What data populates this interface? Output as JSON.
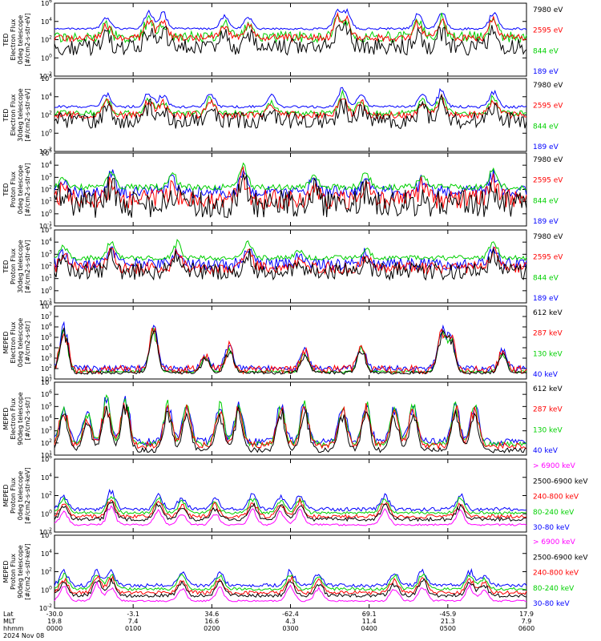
{
  "colors": {
    "black": "#000000",
    "red": "#ff0000",
    "green": "#00d000",
    "blue": "#0000ff",
    "magenta": "#ff00ff"
  },
  "chart_data": [
    {
      "type": "line",
      "ylabel": [
        "TED",
        "Electron Flux",
        "0deg telescope",
        "[#/cm2-s-str-eV]"
      ],
      "log": true,
      "ylim_exp": [
        -2,
        6
      ],
      "tick_labels": [
        "10^-2",
        "10^0",
        "10^2",
        "10^4",
        "10^6"
      ],
      "series": [
        {
          "name": "7980 eV",
          "color": "black"
        },
        {
          "name": "2595 eV",
          "color": "red"
        },
        {
          "name": "844 eV",
          "color": "green"
        },
        {
          "name": "189 eV",
          "color": "blue"
        }
      ],
      "base": {
        "black": 1.2,
        "red": 2.2,
        "green": 2.3,
        "blue": 3.2
      },
      "noise": {
        "black": 0.9,
        "red": 0.4,
        "green": 0.6,
        "blue": 0.12
      },
      "peaks": [
        {
          "x": 0.11,
          "h": 1.5
        },
        {
          "x": 0.2,
          "h": 2.2
        },
        {
          "x": 0.23,
          "h": 2.0
        },
        {
          "x": 0.36,
          "h": 1.7
        },
        {
          "x": 0.41,
          "h": 1.5
        },
        {
          "x": 0.6,
          "h": 2.4
        },
        {
          "x": 0.62,
          "h": 2.0
        },
        {
          "x": 0.77,
          "h": 1.8
        },
        {
          "x": 0.82,
          "h": 2.1
        },
        {
          "x": 0.93,
          "h": 2.2
        }
      ]
    },
    {
      "type": "line",
      "ylabel": [
        "TED",
        "Electron Flux",
        "30deg telescope",
        "[#/cm2-s-str-eV]"
      ],
      "log": true,
      "ylim_exp": [
        -2,
        6
      ],
      "tick_labels": [
        "10^-2",
        "10^0",
        "10^2",
        "10^4",
        "10^6"
      ],
      "series": [
        {
          "name": "7980 eV",
          "color": "black"
        },
        {
          "name": "2595 eV",
          "color": "red"
        },
        {
          "name": "844 eV",
          "color": "green"
        },
        {
          "name": "189 eV",
          "color": "blue"
        }
      ],
      "base": {
        "black": 1.4,
        "red": 2.0,
        "green": 2.2,
        "blue": 2.9
      },
      "noise": {
        "black": 0.9,
        "red": 0.4,
        "green": 0.3,
        "blue": 0.15
      },
      "peaks": [
        {
          "x": 0.11,
          "h": 1.6
        },
        {
          "x": 0.2,
          "h": 1.8
        },
        {
          "x": 0.23,
          "h": 1.5
        },
        {
          "x": 0.33,
          "h": 1.8
        },
        {
          "x": 0.46,
          "h": 1.4
        },
        {
          "x": 0.61,
          "h": 2.3
        },
        {
          "x": 0.65,
          "h": 1.6
        },
        {
          "x": 0.78,
          "h": 1.7
        },
        {
          "x": 0.82,
          "h": 2.0
        },
        {
          "x": 0.93,
          "h": 2.0
        }
      ]
    },
    {
      "type": "line",
      "ylabel": [
        "TED",
        "Proton Flux",
        "0deg telescope",
        "[#/cm2-s-str-eV]"
      ],
      "log": true,
      "ylim_exp": [
        -1,
        5
      ],
      "tick_labels": [
        "10^-1",
        "10^0",
        "10^1",
        "10^2",
        "10^3",
        "10^4",
        "10^5"
      ],
      "series": [
        {
          "name": "7980 eV",
          "color": "black"
        },
        {
          "name": "2595 eV",
          "color": "red"
        },
        {
          "name": "844 eV",
          "color": "green"
        },
        {
          "name": "189 eV",
          "color": "blue"
        }
      ],
      "base": {
        "black": 0.8,
        "red": 1.2,
        "green": 2.2,
        "blue": 1.8
      },
      "noise": {
        "black": 1.2,
        "red": 0.8,
        "green": 0.25,
        "blue": 0.5
      },
      "peaks": [
        {
          "x": 0.02,
          "h": 0.9
        },
        {
          "x": 0.12,
          "h": 1.6
        },
        {
          "x": 0.25,
          "h": 1.2
        },
        {
          "x": 0.4,
          "h": 2.0
        },
        {
          "x": 0.55,
          "h": 1.2
        },
        {
          "x": 0.66,
          "h": 1.4
        },
        {
          "x": 0.78,
          "h": 1.2
        },
        {
          "x": 0.93,
          "h": 1.6
        }
      ]
    },
    {
      "type": "line",
      "ylabel": [
        "TED",
        "Proton Flux",
        "30deg telescope",
        "[#/cm2-s-str-eV]"
      ],
      "log": true,
      "ylim_exp": [
        -1,
        5
      ],
      "tick_labels": [
        "10^-1",
        "10^0",
        "10^1",
        "10^2",
        "10^3",
        "10^4",
        "10^5"
      ],
      "series": [
        {
          "name": "7980 eV",
          "color": "black"
        },
        {
          "name": "2595 eV",
          "color": "red"
        },
        {
          "name": "844 eV",
          "color": "green"
        },
        {
          "name": "189 eV",
          "color": "blue"
        }
      ],
      "base": {
        "black": 1.6,
        "red": 1.9,
        "green": 2.7,
        "blue": 2.2
      },
      "noise": {
        "black": 0.7,
        "red": 0.5,
        "green": 0.2,
        "blue": 0.5
      },
      "peaks": [
        {
          "x": 0.02,
          "h": 1.0
        },
        {
          "x": 0.12,
          "h": 1.5
        },
        {
          "x": 0.26,
          "h": 1.4
        },
        {
          "x": 0.41,
          "h": 1.5
        },
        {
          "x": 0.52,
          "h": 0.8
        },
        {
          "x": 0.66,
          "h": 0.9
        },
        {
          "x": 0.93,
          "h": 1.6
        }
      ]
    },
    {
      "type": "line",
      "ylabel": [
        "MEPED",
        "Electron Flux",
        "0deg telescope",
        "[#/cm2-s-str]"
      ],
      "log": true,
      "ylim_exp": [
        1,
        8
      ],
      "tick_labels": [
        "10^1",
        "10^2",
        "10^3",
        "10^4",
        "10^5",
        "10^6",
        "10^7",
        "10^8"
      ],
      "series": [
        {
          "name": "612 keV",
          "color": "black"
        },
        {
          "name": "287 keV",
          "color": "red"
        },
        {
          "name": "130 keV",
          "color": "green"
        },
        {
          "name": "40 keV",
          "color": "blue"
        }
      ],
      "base": {
        "black": 1.6,
        "red": 1.9,
        "green": 1.7,
        "blue": 2.0
      },
      "noise": {
        "black": 0.15,
        "red": 0.4,
        "green": 0.1,
        "blue": 0.3
      },
      "peaks": [
        {
          "x": 0.02,
          "h": 4.5
        },
        {
          "x": 0.21,
          "h": 4.5
        },
        {
          "x": 0.32,
          "h": 1.6
        },
        {
          "x": 0.37,
          "h": 2.5
        },
        {
          "x": 0.53,
          "h": 2.0
        },
        {
          "x": 0.65,
          "h": 2.5
        },
        {
          "x": 0.82,
          "h": 4.0
        },
        {
          "x": 0.84,
          "h": 3.5
        },
        {
          "x": 0.95,
          "h": 2.0
        }
      ]
    },
    {
      "type": "line",
      "ylabel": [
        "MEPED",
        "Electron Flux",
        "90deg telescope",
        "[#/cm2-s-str]"
      ],
      "log": true,
      "ylim_exp": [
        1,
        7
      ],
      "tick_labels": [
        "10^1",
        "10^2",
        "10^3",
        "10^4",
        "10^5",
        "10^6",
        "10^7"
      ],
      "series": [
        {
          "name": "612 keV",
          "color": "black"
        },
        {
          "name": "287 keV",
          "color": "red"
        },
        {
          "name": "130 keV",
          "color": "green"
        },
        {
          "name": "40 keV",
          "color": "blue"
        }
      ],
      "base": {
        "black": 1.4,
        "red": 1.8,
        "green": 1.9,
        "blue": 2.1
      },
      "noise": {
        "black": 0.2,
        "red": 0.3,
        "green": 0.2,
        "blue": 0.3
      },
      "peaks": [
        {
          "x": 0.02,
          "h": 3.5
        },
        {
          "x": 0.07,
          "h": 2.6
        },
        {
          "x": 0.11,
          "h": 4.0
        },
        {
          "x": 0.15,
          "h": 4.0
        },
        {
          "x": 0.24,
          "h": 3.5
        },
        {
          "x": 0.28,
          "h": 3.6
        },
        {
          "x": 0.35,
          "h": 3.6
        },
        {
          "x": 0.39,
          "h": 3.5
        },
        {
          "x": 0.48,
          "h": 3.5
        },
        {
          "x": 0.53,
          "h": 3.6
        },
        {
          "x": 0.61,
          "h": 3.4
        },
        {
          "x": 0.66,
          "h": 3.6
        },
        {
          "x": 0.72,
          "h": 3.3
        },
        {
          "x": 0.76,
          "h": 3.5
        },
        {
          "x": 0.85,
          "h": 3.5
        },
        {
          "x": 0.89,
          "h": 3.5
        }
      ]
    },
    {
      "type": "line",
      "ylabel": [
        "MEPED",
        "Proton Flux",
        "0deg telescope",
        "[#/cm2-s-str-keV]"
      ],
      "log": true,
      "ylim_exp": [
        -2,
        6
      ],
      "tick_labels": [
        "10^-2",
        "10^0",
        "10^2",
        "10^4",
        "10^6"
      ],
      "series": [
        {
          "name": "> 6900 keV",
          "color": "magenta"
        },
        {
          "name": "2500-6900 keV",
          "color": "black"
        },
        {
          "name": "240-800 keV",
          "color": "red"
        },
        {
          "name": "80-240 keV",
          "color": "green"
        },
        {
          "name": "30-80 keV",
          "color": "blue"
        }
      ],
      "base": {
        "magenta": -1.2,
        "black": -0.6,
        "red": -0.3,
        "green": 0.1,
        "blue": 0.5
      },
      "noise": {
        "magenta": 0.1,
        "black": 0.2,
        "red": 0.2,
        "green": 0.15,
        "blue": 0.2
      },
      "peaks": [
        {
          "x": 0.02,
          "h": 1.7
        },
        {
          "x": 0.12,
          "h": 2.3
        },
        {
          "x": 0.22,
          "h": 1.8
        },
        {
          "x": 0.27,
          "h": 1.5
        },
        {
          "x": 0.34,
          "h": 1.4
        },
        {
          "x": 0.42,
          "h": 1.8
        },
        {
          "x": 0.48,
          "h": 1.6
        },
        {
          "x": 0.52,
          "h": 1.8
        },
        {
          "x": 0.7,
          "h": 1.9
        },
        {
          "x": 0.86,
          "h": 1.7
        }
      ]
    },
    {
      "type": "line",
      "ylabel": [
        "MEPED",
        "Proton Flux",
        "90deg telescope",
        "[#/cm2-s-str-keV]"
      ],
      "log": true,
      "ylim_exp": [
        -2,
        6
      ],
      "tick_labels": [
        "10^-2",
        "10^0",
        "10^2",
        "10^4",
        "10^6"
      ],
      "series": [
        {
          "name": "> 6900 keV",
          "color": "magenta"
        },
        {
          "name": "2500-6900 keV",
          "color": "black"
        },
        {
          "name": "240-800 keV",
          "color": "red"
        },
        {
          "name": "80-240 keV",
          "color": "green"
        },
        {
          "name": "30-80 keV",
          "color": "blue"
        }
      ],
      "base": {
        "magenta": -1.2,
        "black": -0.6,
        "red": -0.3,
        "green": 0.1,
        "blue": 0.5
      },
      "noise": {
        "magenta": 0.1,
        "black": 0.2,
        "red": 0.2,
        "green": 0.15,
        "blue": 0.2
      },
      "peaks": [
        {
          "x": 0.02,
          "h": 1.8
        },
        {
          "x": 0.09,
          "h": 2.0
        },
        {
          "x": 0.12,
          "h": 1.8
        },
        {
          "x": 0.27,
          "h": 1.7
        },
        {
          "x": 0.35,
          "h": 1.6
        },
        {
          "x": 0.5,
          "h": 1.8
        },
        {
          "x": 0.56,
          "h": 1.5
        },
        {
          "x": 0.72,
          "h": 1.6
        },
        {
          "x": 0.78,
          "h": 1.9
        },
        {
          "x": 0.88,
          "h": 1.7
        },
        {
          "x": 0.91,
          "h": 1.3
        }
      ]
    }
  ],
  "x_axis": {
    "row_labels": [
      "Lat",
      "MLT",
      "hhmm",
      "2024 Nov 08"
    ],
    "ticks": [
      {
        "lat": "-30.0",
        "mlt": "19.8",
        "hhmm": "0000"
      },
      {
        "lat": "-3.1",
        "mlt": "7.4",
        "hhmm": "0100"
      },
      {
        "lat": "34.6",
        "mlt": "16.6",
        "hhmm": "0200"
      },
      {
        "lat": "-62.4",
        "mlt": "4.3",
        "hhmm": "0300"
      },
      {
        "lat": "69.1",
        "mlt": "11.4",
        "hhmm": "0400"
      },
      {
        "lat": "-45.9",
        "mlt": "21.3",
        "hhmm": "0500"
      },
      {
        "lat": "17.9",
        "mlt": "7.9",
        "hhmm": "0600"
      }
    ]
  }
}
